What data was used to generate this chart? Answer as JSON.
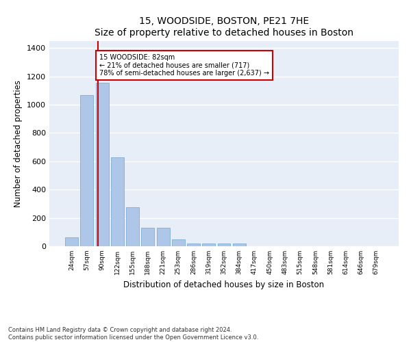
{
  "title": "15, WOODSIDE, BOSTON, PE21 7HE",
  "subtitle": "Size of property relative to detached houses in Boston",
  "xlabel": "Distribution of detached houses by size in Boston",
  "ylabel": "Number of detached properties",
  "categories": [
    "24sqm",
    "57sqm",
    "90sqm",
    "122sqm",
    "155sqm",
    "188sqm",
    "221sqm",
    "253sqm",
    "286sqm",
    "319sqm",
    "352sqm",
    "384sqm",
    "417sqm",
    "450sqm",
    "483sqm",
    "515sqm",
    "548sqm",
    "581sqm",
    "614sqm",
    "646sqm",
    "679sqm"
  ],
  "values": [
    65,
    1070,
    1155,
    630,
    275,
    130,
    130,
    47,
    18,
    18,
    18,
    17,
    0,
    0,
    0,
    0,
    0,
    0,
    0,
    0,
    0
  ],
  "bar_color": "#aec6e8",
  "bar_edgecolor": "#7aadd4",
  "background_color": "#e8eef7",
  "grid_color": "#ffffff",
  "red_line_x": 1.72,
  "red_line_color": "#cc0000",
  "annotation_text": "15 WOODSIDE: 82sqm\n← 21% of detached houses are smaller (717)\n78% of semi-detached houses are larger (2,637) →",
  "annotation_box_color": "#ffffff",
  "annotation_box_edgecolor": "#cc0000",
  "ylim": [
    0,
    1450
  ],
  "yticks": [
    0,
    200,
    400,
    600,
    800,
    1000,
    1200,
    1400
  ],
  "footer_line1": "Contains HM Land Registry data © Crown copyright and database right 2024.",
  "footer_line2": "Contains public sector information licensed under the Open Government Licence v3.0."
}
